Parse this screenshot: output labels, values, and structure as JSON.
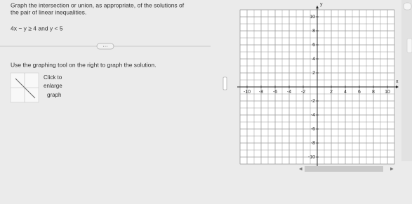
{
  "question": {
    "lines": [
      "Graph the intersection or union, as appropriate, of the solutions of",
      "the pair of linear inequalities."
    ],
    "inequalities": "4x − y ≥ 4 and y < 5",
    "instruction": "Use the graphing tool on the right to graph the solution.",
    "thumbnail_caption": [
      "Click to",
      "enlarge",
      "graph"
    ]
  },
  "graph": {
    "x_label": "x",
    "y_label": "y",
    "xlim": [
      -11,
      11
    ],
    "ylim": [
      -11,
      11
    ],
    "xticks": [
      -10,
      -8,
      -6,
      -4,
      -2,
      2,
      4,
      6,
      8,
      10
    ],
    "yticks": [
      -10,
      -8,
      -6,
      -4,
      -2,
      2,
      4,
      6,
      8,
      10
    ]
  }
}
